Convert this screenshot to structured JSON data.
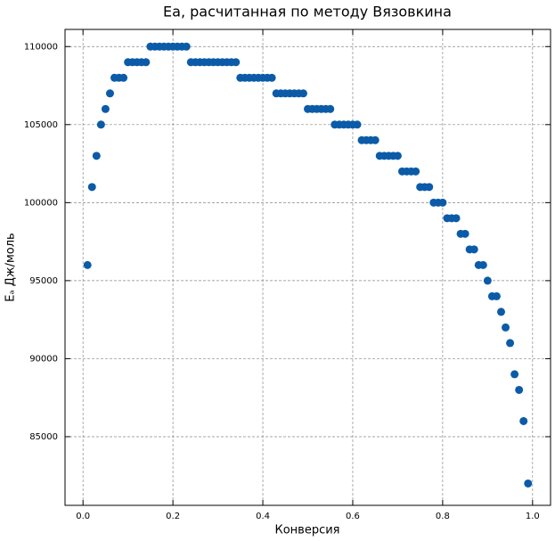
{
  "chart_data": {
    "type": "scatter",
    "title": "Ea, расчитанная по методу Вязовкина",
    "xlabel": "Конверсия",
    "ylabel": "Eₐ Дж/моль",
    "color": "#0b5ba8",
    "grid": true,
    "x": [
      0.01,
      0.02,
      0.03,
      0.04,
      0.05,
      0.06,
      0.07,
      0.08,
      0.09,
      0.1,
      0.11,
      0.12,
      0.13,
      0.14,
      0.15,
      0.16,
      0.17,
      0.18,
      0.19,
      0.2,
      0.21,
      0.22,
      0.23,
      0.24,
      0.25,
      0.26,
      0.27,
      0.28,
      0.29,
      0.3,
      0.31,
      0.32,
      0.33,
      0.34,
      0.35,
      0.36,
      0.37,
      0.38,
      0.39,
      0.4,
      0.41,
      0.42,
      0.43,
      0.44,
      0.45,
      0.46,
      0.47,
      0.48,
      0.49,
      0.5,
      0.51,
      0.52,
      0.53,
      0.54,
      0.55,
      0.56,
      0.57,
      0.58,
      0.59,
      0.6,
      0.61,
      0.62,
      0.63,
      0.64,
      0.65,
      0.66,
      0.67,
      0.68,
      0.69,
      0.7,
      0.71,
      0.72,
      0.73,
      0.74,
      0.75,
      0.76,
      0.77,
      0.78,
      0.79,
      0.8,
      0.81,
      0.82,
      0.83,
      0.84,
      0.85,
      0.86,
      0.87,
      0.88,
      0.89,
      0.9,
      0.91,
      0.92,
      0.93,
      0.94,
      0.95,
      0.96,
      0.97,
      0.98,
      0.99
    ],
    "values": [
      96000,
      101000,
      103000,
      105000,
      106000,
      107000,
      108000,
      108000,
      108000,
      109000,
      109000,
      109000,
      109000,
      109000,
      110000,
      110000,
      110000,
      110000,
      110000,
      110000,
      110000,
      110000,
      110000,
      109000,
      109000,
      109000,
      109000,
      109000,
      109000,
      109000,
      109000,
      109000,
      109000,
      109000,
      108000,
      108000,
      108000,
      108000,
      108000,
      108000,
      108000,
      108000,
      107000,
      107000,
      107000,
      107000,
      107000,
      107000,
      107000,
      106000,
      106000,
      106000,
      106000,
      106000,
      106000,
      105000,
      105000,
      105000,
      105000,
      105000,
      105000,
      104000,
      104000,
      104000,
      104000,
      103000,
      103000,
      103000,
      103000,
      103000,
      102000,
      102000,
      102000,
      102000,
      101000,
      101000,
      101000,
      100000,
      100000,
      100000,
      99000,
      99000,
      99000,
      98000,
      98000,
      97000,
      97000,
      96000,
      96000,
      95000,
      94000,
      94000,
      93000,
      92000,
      91000,
      89000,
      88000,
      86000,
      82000
    ],
    "xlim": [
      -0.04,
      1.04
    ],
    "ylim": [
      80600,
      111100
    ],
    "xticks": [
      {
        "value": 0,
        "label": "0.0"
      },
      0.2,
      0.4,
      0.6,
      0.8,
      {
        "value": 1,
        "label": "1.0"
      }
    ],
    "yticks": [
      85000,
      90000,
      95000,
      100000,
      105000,
      110000
    ]
  }
}
